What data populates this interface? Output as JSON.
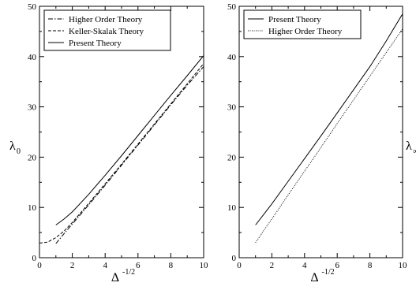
{
  "chart_data": [
    {
      "type": "line",
      "xlabel": "Δ",
      "xlabel_sup": "-1/2",
      "ylabel": "λ",
      "ylabel_sub": "0",
      "xlim": [
        0,
        10
      ],
      "ylim": [
        0,
        50
      ],
      "xticks": [
        0,
        2,
        4,
        6,
        8,
        10
      ],
      "yticks": [
        0,
        10,
        20,
        30,
        40,
        50
      ],
      "grid": false,
      "legend_position": "top-left",
      "series": [
        {
          "name": "Higher Order Theory",
          "dash": "6,2,1.5,2",
          "x": [
            1.0,
            1.5,
            2,
            3,
            4,
            5,
            6,
            7,
            8,
            9,
            10
          ],
          "y": [
            2.8,
            4.8,
            6.7,
            10.5,
            14.4,
            18.4,
            22.4,
            26.4,
            30.4,
            34.3,
            38.0
          ]
        },
        {
          "name": "Keller-Skalak Theory",
          "dash": "4,2",
          "x": [
            0.0,
            0.5,
            1.0,
            1.5,
            2,
            3,
            4,
            5,
            6,
            7,
            8,
            9,
            10
          ],
          "y": [
            2.9,
            3.1,
            4.0,
            5.3,
            7.0,
            10.8,
            14.7,
            18.6,
            22.6,
            26.6,
            30.6,
            34.6,
            38.6
          ]
        },
        {
          "name": "Present Theory",
          "dash": "",
          "x": [
            1.0,
            1.5,
            2,
            3,
            4,
            5,
            6,
            7,
            8,
            9,
            10
          ],
          "y": [
            6.5,
            7.7,
            9.1,
            12.6,
            16.4,
            20.3,
            24.3,
            28.3,
            32.3,
            36.2,
            40.2
          ]
        }
      ]
    },
    {
      "type": "line",
      "xlabel": "Δ",
      "xlabel_sup": "-1/2",
      "ylabel": "λ",
      "ylabel_sub": "∞",
      "xlim": [
        0,
        10
      ],
      "ylim": [
        0,
        50
      ],
      "xticks": [
        0,
        2,
        4,
        6,
        8,
        10
      ],
      "yticks": [
        0,
        10,
        20,
        30,
        40,
        50
      ],
      "grid": false,
      "legend_position": "top-left",
      "series": [
        {
          "name": "Present Theory",
          "dash": "",
          "x": [
            1.0,
            1.5,
            2,
            3,
            4,
            5,
            6,
            7,
            8,
            9,
            10
          ],
          "y": [
            6.5,
            8.6,
            10.7,
            15.2,
            19.7,
            24.2,
            28.8,
            33.4,
            38.0,
            43.1,
            48.5
          ]
        },
        {
          "name": "Higher Order Theory",
          "dash": "1,1.5",
          "x": [
            1.0,
            1.5,
            2,
            3,
            4,
            5,
            6,
            7,
            8,
            9,
            10
          ],
          "y": [
            3.0,
            5.4,
            7.7,
            12.5,
            17.2,
            21.9,
            26.7,
            31.4,
            36.1,
            40.8,
            45.5
          ]
        }
      ]
    }
  ]
}
